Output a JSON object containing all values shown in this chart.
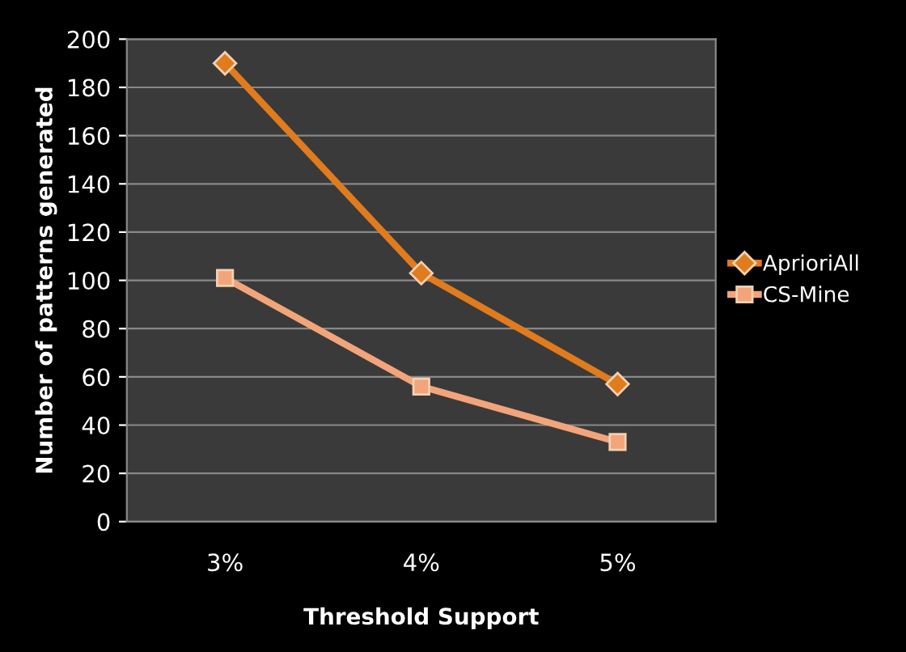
{
  "chart_data": {
    "type": "line",
    "xlabel": "Threshold Support",
    "ylabel": "Number of patterns generated",
    "categories": [
      "3%",
      "4%",
      "5%"
    ],
    "series": [
      {
        "name": "AprioriAll",
        "color": "#e07b1e",
        "values": [
          190,
          103,
          57
        ],
        "marker": "diamond"
      },
      {
        "name": "CS-Mine",
        "color": "#f2a57a",
        "values": [
          101,
          56,
          33
        ],
        "marker": "square"
      }
    ],
    "ylim": [
      0,
      200
    ],
    "yticks": [
      0,
      20,
      40,
      60,
      80,
      100,
      120,
      140,
      160,
      180,
      200
    ],
    "grid": "y",
    "legend": "right",
    "line_style": "solid"
  }
}
